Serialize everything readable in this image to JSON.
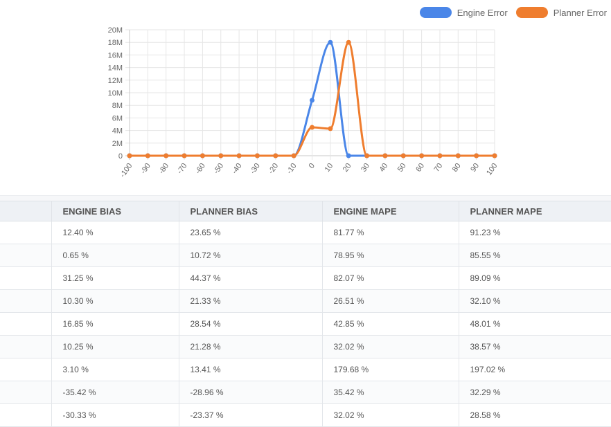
{
  "chart_data": {
    "type": "line",
    "x": [
      -100,
      -90,
      -80,
      -70,
      -60,
      -50,
      -40,
      -30,
      -20,
      -10,
      0,
      10,
      20,
      30,
      40,
      50,
      60,
      70,
      80,
      90,
      100
    ],
    "x_tick_labels": [
      "-100",
      "-90",
      "-80",
      "-70",
      "-60",
      "-50",
      "-40",
      "-30",
      "-20",
      "-10",
      "0",
      "10",
      "20",
      "30",
      "40",
      "50",
      "60",
      "70",
      "80",
      "90",
      "100"
    ],
    "y_tick_labels": [
      "0",
      "2M",
      "4M",
      "6M",
      "8M",
      "10M",
      "12M",
      "14M",
      "16M",
      "18M",
      "20M"
    ],
    "ylim": [
      0,
      20000000
    ],
    "grid": true,
    "legend_position": "top-right",
    "series": [
      {
        "name": "Engine Error",
        "color": "#4a86e8",
        "values": [
          0,
          0,
          0,
          0,
          0,
          0,
          0,
          0,
          0,
          0,
          8800000,
          18000000,
          0,
          0,
          0,
          0,
          0,
          0,
          0,
          0,
          0
        ]
      },
      {
        "name": "Planner Error",
        "color": "#ef7d2e",
        "values": [
          0,
          0,
          0,
          0,
          0,
          0,
          0,
          0,
          0,
          0,
          4500000,
          4300000,
          18000000,
          0,
          0,
          0,
          0,
          0,
          0,
          0,
          0
        ]
      }
    ]
  },
  "table": {
    "headers": [
      "",
      "ENGINE BIAS",
      "PLANNER BIAS",
      "ENGINE MAPE",
      "PLANNER MAPE"
    ],
    "rows": [
      [
        "",
        "12.40 %",
        "23.65 %",
        "81.77 %",
        "91.23 %"
      ],
      [
        "",
        "0.65 %",
        "10.72 %",
        "78.95 %",
        "85.55 %"
      ],
      [
        "",
        "31.25 %",
        "44.37 %",
        "82.07 %",
        "89.09 %"
      ],
      [
        "",
        "10.30 %",
        "21.33 %",
        "26.51 %",
        "32.10 %"
      ],
      [
        "",
        "16.85 %",
        "28.54 %",
        "42.85 %",
        "48.01 %"
      ],
      [
        "",
        "10.25 %",
        "21.28 %",
        "32.02 %",
        "38.57 %"
      ],
      [
        "",
        "3.10 %",
        "13.41 %",
        "179.68 %",
        "197.02 %"
      ],
      [
        "",
        "-35.42 %",
        "-28.96 %",
        "35.42 %",
        "32.29 %"
      ],
      [
        "",
        "-30.33 %",
        "-23.37 %",
        "32.02 %",
        "28.58 %"
      ]
    ]
  }
}
